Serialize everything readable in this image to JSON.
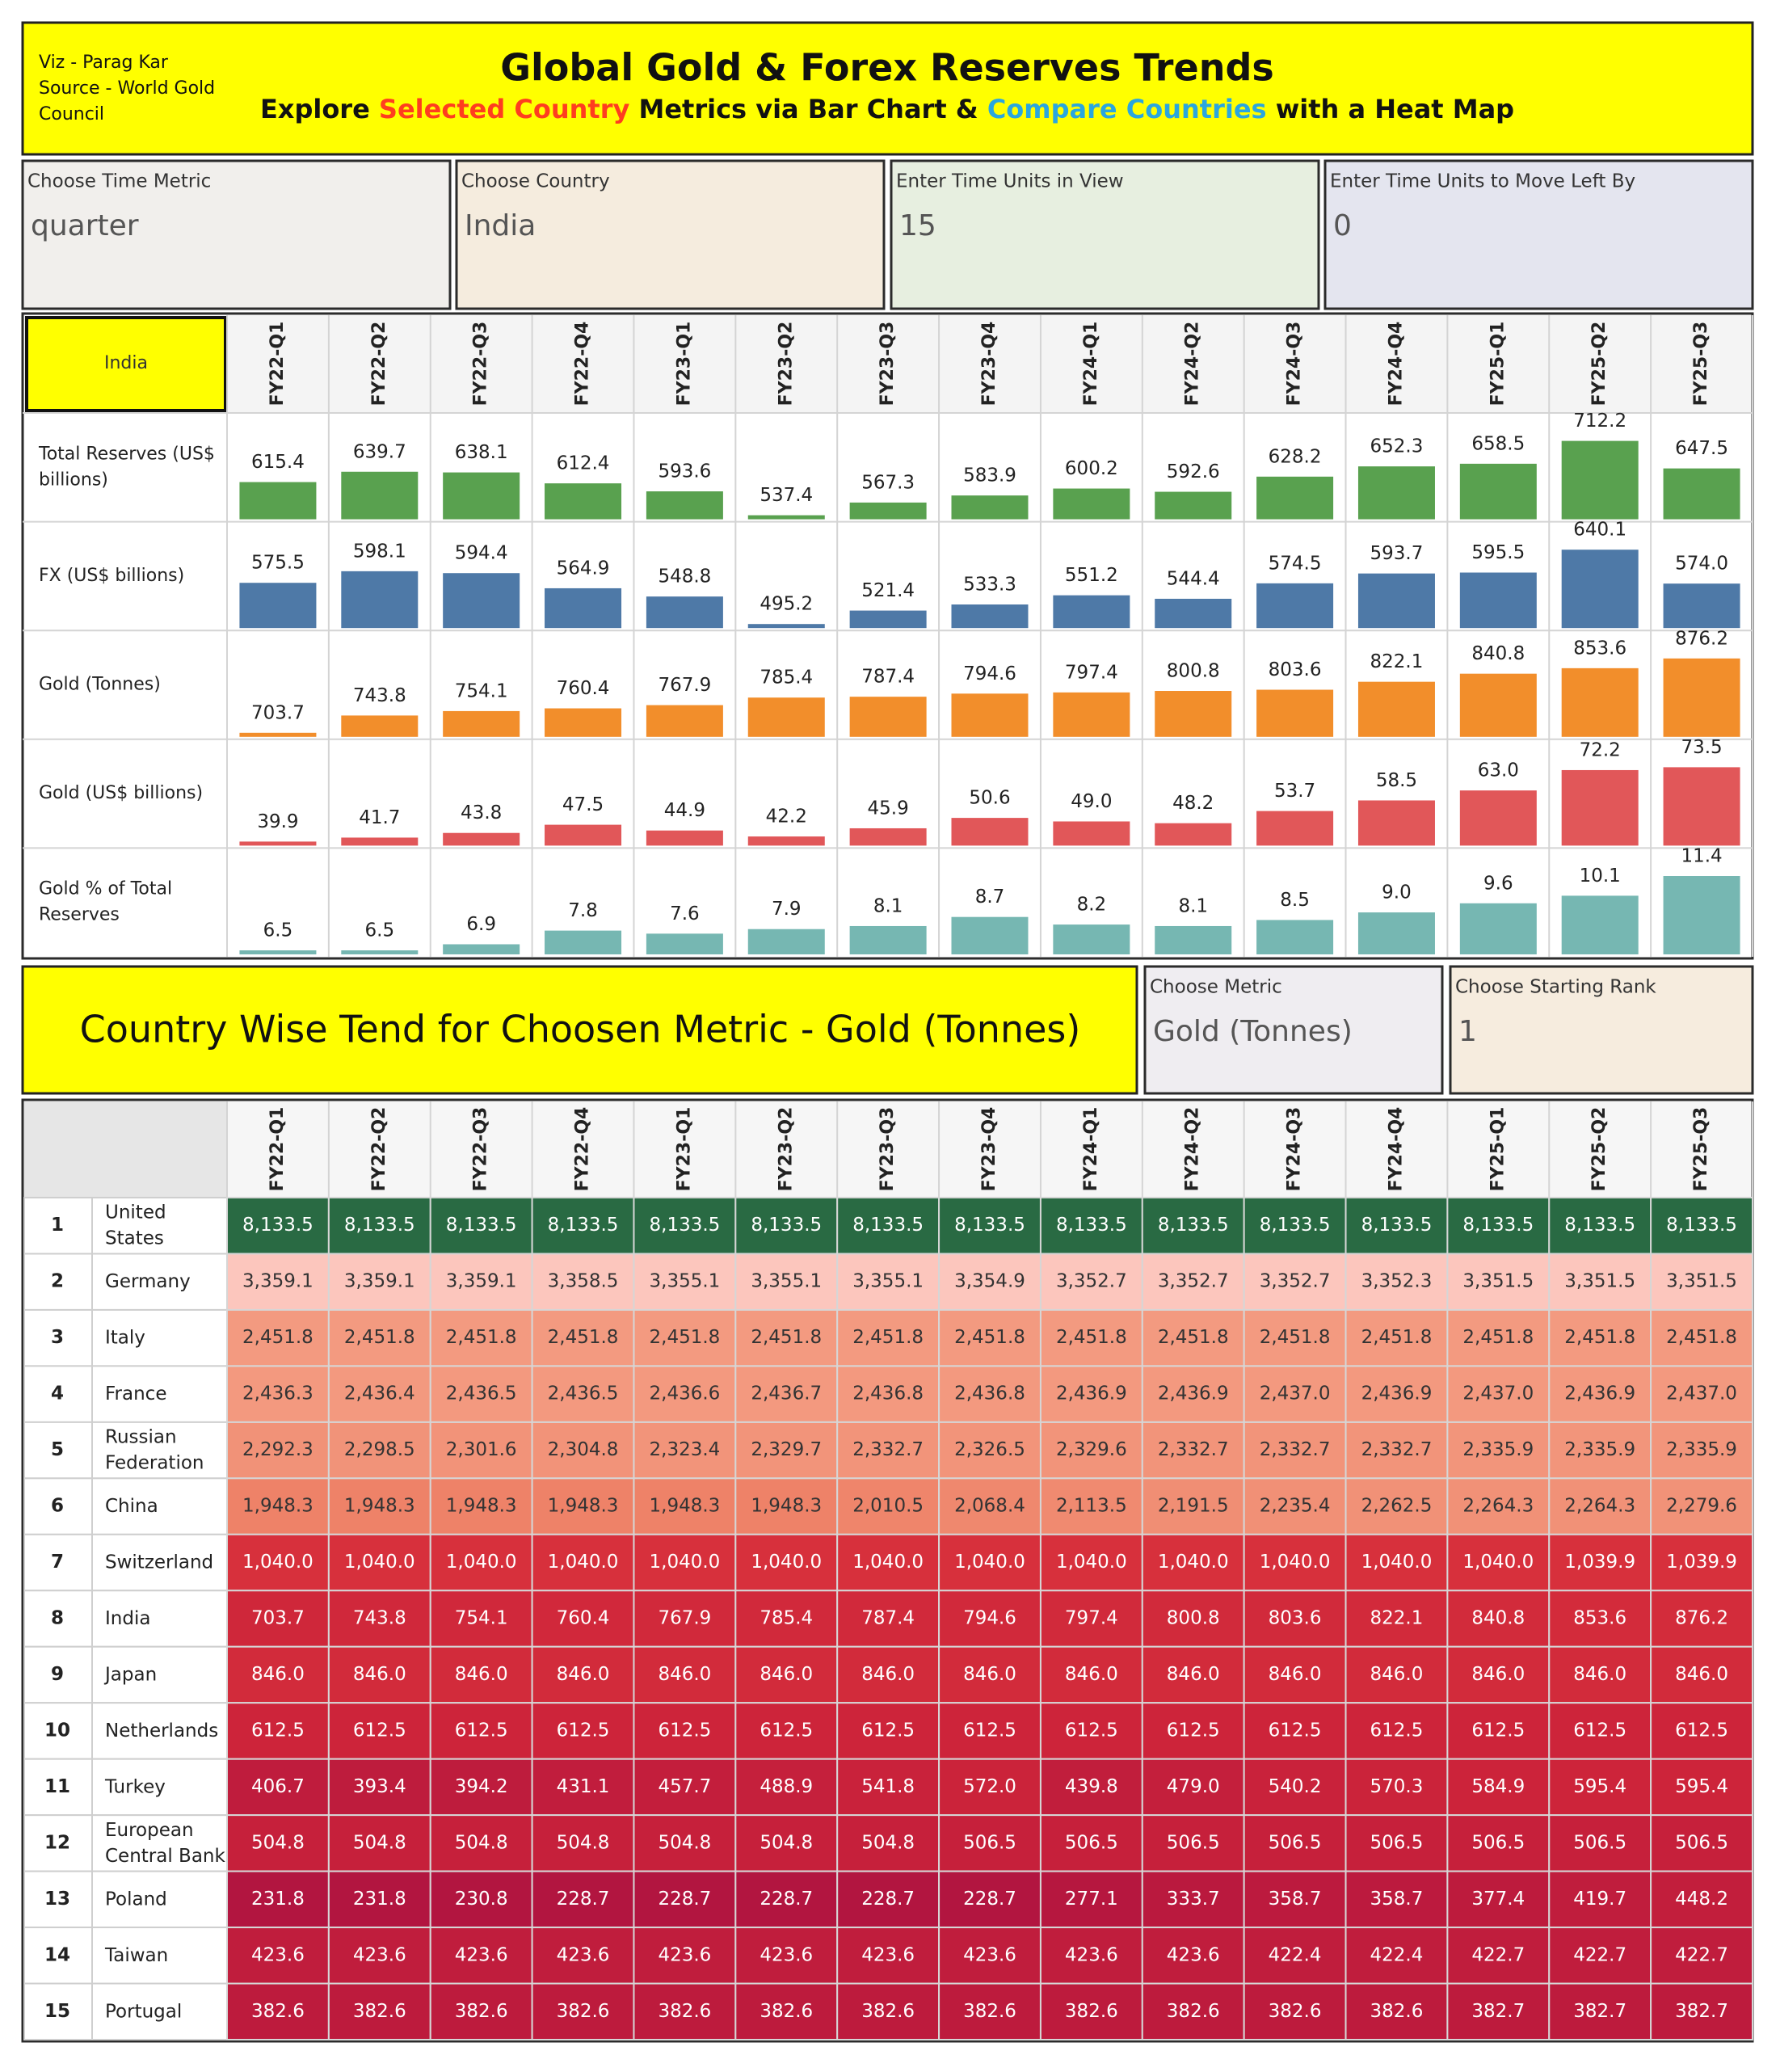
{
  "header": {
    "credit": [
      "Viz - Parag Kar",
      "Source - World Gold",
      "Council"
    ],
    "title": "Global Gold & Forex Reserves Trends",
    "subtitle": [
      {
        "text": "Explore ",
        "color": "#111111"
      },
      {
        "text": "Selected Country",
        "color": "#ff3d1f"
      },
      {
        "text": " Metrics via Bar Chart & ",
        "color": "#111111"
      },
      {
        "text": "Compare Countries",
        "color": "#2aa6df"
      },
      {
        "text": " with a Heat Map",
        "color": "#111111"
      }
    ]
  },
  "controls": [
    {
      "label": "Choose Time Metric",
      "value": "quarter",
      "color": "#f1efec"
    },
    {
      "label": "Choose Country",
      "value": "India",
      "color": "#f5ecde"
    },
    {
      "label": "Enter Time Units in View",
      "value": 15,
      "color": "#e7efe0"
    },
    {
      "label": "Enter Time Units to Move Left By",
      "value": 0,
      "color": "#e4e5ef"
    }
  ],
  "periods": [
    "FY22-Q1",
    "FY22-Q2",
    "FY22-Q3",
    "FY22-Q4",
    "FY23-Q1",
    "FY23-Q2",
    "FY23-Q3",
    "FY23-Q4",
    "FY24-Q1",
    "FY24-Q2",
    "FY24-Q3",
    "FY24-Q4",
    "FY25-Q1",
    "FY25-Q2",
    "FY25-Q3"
  ],
  "bar_panel": {
    "country": "India",
    "metrics": [
      {
        "name": "Total Reserves (US$ billions)",
        "color": "#59a14f",
        "values": [
          615.4,
          639.7,
          638.1,
          612.4,
          593.6,
          537.4,
          567.3,
          583.9,
          600.2,
          592.6,
          628.2,
          652.3,
          658.5,
          712.2,
          647.5
        ]
      },
      {
        "name": "FX (US$ billions)",
        "color": "#4e79a7",
        "values": [
          575.5,
          598.1,
          594.4,
          564.9,
          548.8,
          495.2,
          521.4,
          533.3,
          551.2,
          544.4,
          574.5,
          593.7,
          595.5,
          640.1,
          574.0
        ],
        "value_labels": [
          "575.5",
          "598.1",
          "594.4",
          "564.9",
          "548.8",
          "495.2",
          "521.4",
          "533.3",
          "551.2",
          "544.4",
          "574.5",
          "593.7",
          "595.5",
          "640.1",
          "574.0"
        ]
      },
      {
        "name": "Gold (Tonnes)",
        "color": "#f28e2b",
        "values": [
          703.7,
          743.8,
          754.1,
          760.4,
          767.9,
          785.4,
          787.4,
          794.6,
          797.4,
          800.8,
          803.6,
          822.1,
          840.8,
          853.6,
          876.2
        ]
      },
      {
        "name": "Gold (US$ billions)",
        "color": "#e15759",
        "values": [
          39.9,
          41.7,
          43.8,
          47.5,
          44.9,
          42.2,
          45.9,
          50.6,
          49.0,
          48.2,
          53.7,
          58.5,
          63.0,
          72.2,
          73.5
        ],
        "value_labels": [
          "39.9",
          "41.7",
          "43.8",
          "47.5",
          "44.9",
          "42.2",
          "45.9",
          "50.6",
          "49.0",
          "48.2",
          "53.7",
          "58.5",
          "63.0",
          "72.2",
          "73.5"
        ]
      },
      {
        "name": "Gold % of Total Reserves",
        "color": "#76b7b2",
        "values": [
          6.5,
          6.5,
          6.9,
          7.8,
          7.6,
          7.9,
          8.1,
          8.7,
          8.2,
          8.1,
          8.5,
          9.0,
          9.6,
          10.1,
          11.4
        ],
        "value_labels": [
          "6.5",
          "6.5",
          "6.9",
          "7.8",
          "7.6",
          "7.9",
          "8.1",
          "8.7",
          "8.2",
          "8.1",
          "8.5",
          "9.0",
          "9.6",
          "10.1",
          "11.4"
        ]
      }
    ]
  },
  "heatmap": {
    "title": "Country Wise Tend for Choosen Metric - Gold (Tonnes)",
    "controls": [
      {
        "label": "Choose Metric",
        "value": "Gold (Tonnes)",
        "color": "#efedf1"
      },
      {
        "label": "Choose Starting Rank",
        "value": 1,
        "color": "#f6ecde"
      }
    ],
    "rows": [
      {
        "rank": 1,
        "country": "United States",
        "values": [
          "8,133.5",
          "8,133.5",
          "8,133.5",
          "8,133.5",
          "8,133.5",
          "8,133.5",
          "8,133.5",
          "8,133.5",
          "8,133.5",
          "8,133.5",
          "8,133.5",
          "8,133.5",
          "8,133.5",
          "8,133.5",
          "8,133.5"
        ]
      },
      {
        "rank": 2,
        "country": "Germany",
        "values": [
          "3,359.1",
          "3,359.1",
          "3,359.1",
          "3,358.5",
          "3,355.1",
          "3,355.1",
          "3,355.1",
          "3,354.9",
          "3,352.7",
          "3,352.7",
          "3,352.7",
          "3,352.3",
          "3,351.5",
          "3,351.5",
          "3,351.5"
        ]
      },
      {
        "rank": 3,
        "country": "Italy",
        "values": [
          "2,451.8",
          "2,451.8",
          "2,451.8",
          "2,451.8",
          "2,451.8",
          "2,451.8",
          "2,451.8",
          "2,451.8",
          "2,451.8",
          "2,451.8",
          "2,451.8",
          "2,451.8",
          "2,451.8",
          "2,451.8",
          "2,451.8"
        ]
      },
      {
        "rank": 4,
        "country": "France",
        "values": [
          "2,436.3",
          "2,436.4",
          "2,436.5",
          "2,436.5",
          "2,436.6",
          "2,436.7",
          "2,436.8",
          "2,436.8",
          "2,436.9",
          "2,436.9",
          "2,437.0",
          "2,436.9",
          "2,437.0",
          "2,436.9",
          "2,437.0"
        ]
      },
      {
        "rank": 5,
        "country": "Russian Federation",
        "values": [
          "2,292.3",
          "2,298.5",
          "2,301.6",
          "2,304.8",
          "2,323.4",
          "2,329.7",
          "2,332.7",
          "2,326.5",
          "2,329.6",
          "2,332.7",
          "2,332.7",
          "2,332.7",
          "2,335.9",
          "2,335.9",
          "2,335.9"
        ]
      },
      {
        "rank": 6,
        "country": "China",
        "values": [
          "1,948.3",
          "1,948.3",
          "1,948.3",
          "1,948.3",
          "1,948.3",
          "1,948.3",
          "2,010.5",
          "2,068.4",
          "2,113.5",
          "2,191.5",
          "2,235.4",
          "2,262.5",
          "2,264.3",
          "2,264.3",
          "2,279.6"
        ]
      },
      {
        "rank": 7,
        "country": "Switzerland",
        "values": [
          "1,040.0",
          "1,040.0",
          "1,040.0",
          "1,040.0",
          "1,040.0",
          "1,040.0",
          "1,040.0",
          "1,040.0",
          "1,040.0",
          "1,040.0",
          "1,040.0",
          "1,040.0",
          "1,040.0",
          "1,039.9",
          "1,039.9"
        ]
      },
      {
        "rank": 8,
        "country": "India",
        "values": [
          "703.7",
          "743.8",
          "754.1",
          "760.4",
          "767.9",
          "785.4",
          "787.4",
          "794.6",
          "797.4",
          "800.8",
          "803.6",
          "822.1",
          "840.8",
          "853.6",
          "876.2"
        ]
      },
      {
        "rank": 9,
        "country": "Japan",
        "values": [
          "846.0",
          "846.0",
          "846.0",
          "846.0",
          "846.0",
          "846.0",
          "846.0",
          "846.0",
          "846.0",
          "846.0",
          "846.0",
          "846.0",
          "846.0",
          "846.0",
          "846.0"
        ]
      },
      {
        "rank": 10,
        "country": "Netherlands",
        "values": [
          "612.5",
          "612.5",
          "612.5",
          "612.5",
          "612.5",
          "612.5",
          "612.5",
          "612.5",
          "612.5",
          "612.5",
          "612.5",
          "612.5",
          "612.5",
          "612.5",
          "612.5"
        ]
      },
      {
        "rank": 11,
        "country": "Turkey",
        "values": [
          "406.7",
          "393.4",
          "394.2",
          "431.1",
          "457.7",
          "488.9",
          "541.8",
          "572.0",
          "439.8",
          "479.0",
          "540.2",
          "570.3",
          "584.9",
          "595.4",
          "595.4"
        ]
      },
      {
        "rank": 12,
        "country": "European Central Bank",
        "values": [
          "504.8",
          "504.8",
          "504.8",
          "504.8",
          "504.8",
          "504.8",
          "504.8",
          "506.5",
          "506.5",
          "506.5",
          "506.5",
          "506.5",
          "506.5",
          "506.5",
          "506.5"
        ]
      },
      {
        "rank": 13,
        "country": "Poland",
        "values": [
          "231.8",
          "231.8",
          "230.8",
          "228.7",
          "228.7",
          "228.7",
          "228.7",
          "228.7",
          "277.1",
          "333.7",
          "358.7",
          "358.7",
          "377.4",
          "419.7",
          "448.2"
        ]
      },
      {
        "rank": 14,
        "country": "Taiwan",
        "values": [
          "423.6",
          "423.6",
          "423.6",
          "423.6",
          "423.6",
          "423.6",
          "423.6",
          "423.6",
          "423.6",
          "423.6",
          "422.4",
          "422.4",
          "422.7",
          "422.7",
          "422.7"
        ]
      },
      {
        "rank": 15,
        "country": "Portugal",
        "values": [
          "382.6",
          "382.6",
          "382.6",
          "382.6",
          "382.6",
          "382.6",
          "382.6",
          "382.6",
          "382.6",
          "382.6",
          "382.6",
          "382.6",
          "382.7",
          "382.7",
          "382.7"
        ]
      }
    ]
  }
}
